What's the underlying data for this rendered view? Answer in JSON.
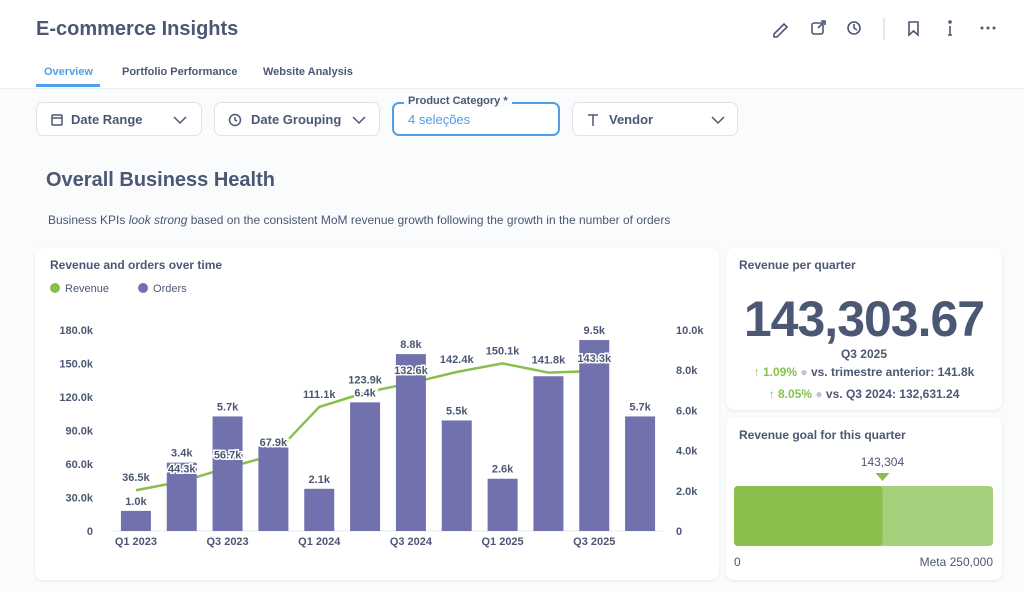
{
  "header": {
    "title": "E-commerce Insights"
  },
  "tabs": [
    "Overview",
    "Portfolio Performance",
    "Website Analysis"
  ],
  "filters": {
    "date_range": "Date Range",
    "date_grouping": "Date Grouping",
    "product_category": {
      "label": "Product Category *",
      "value": "4 seleções"
    },
    "vendor": "Vendor"
  },
  "section": {
    "title": "Overall Business Health",
    "description": [
      "Business KPIs ",
      "look strong",
      " based on the consistent MoM revenue growth following the growth in the number of orders"
    ]
  },
  "combo": {
    "type": "bar-line",
    "title": "Revenue and orders over time",
    "categories": [
      "Q1 2023",
      null,
      "Q3 2023",
      null,
      "Q1 2024",
      null,
      "Q3 2024",
      null,
      "Q1 2025",
      null,
      "Q3 2025",
      null
    ],
    "series": [
      {
        "name": "Revenue",
        "type": "line",
        "color": "#88bf4d",
        "axis": "y",
        "values": [
          36500,
          44300,
          56700,
          67900,
          111100,
          123900,
          132600,
          142400,
          150100,
          141800,
          143300,
          null
        ],
        "value_labels": [
          "36.5k",
          "44.3k",
          "56.7k",
          "67.9k",
          "111.1k",
          "123.9k",
          "132.6k",
          "142.4k",
          "150.1k",
          "141.8k",
          "143.3k",
          null
        ]
      },
      {
        "name": "Orders",
        "type": "bar",
        "color": "#7172ad",
        "axis": "y2",
        "values": [
          1000,
          3400,
          5700,
          4200,
          2100,
          6400,
          8800,
          5500,
          2600,
          7700,
          9500,
          5700
        ],
        "value_labels": [
          "1.0k",
          "3.4k",
          "5.7k",
          null,
          "2.1k",
          "6.4k",
          "8.8k",
          "5.5k",
          "2.6k",
          null,
          "9.5k",
          "5.7k"
        ]
      }
    ],
    "ylim": [
      0,
      180000
    ],
    "yticks": [
      0,
      {
        "value": 30000,
        "label": "30.0k"
      },
      {
        "value": 60000,
        "label": "60.0k"
      },
      {
        "value": 90000,
        "label": "90.0k"
      },
      {
        "value": 120000,
        "label": "120.0k"
      },
      {
        "value": 150000,
        "label": "150.0k"
      },
      {
        "value": 180000,
        "label": "180.0k"
      }
    ],
    "y2lim": [
      0,
      10000
    ],
    "y2ticks": [
      0,
      {
        "value": 2000,
        "label": "2.0k"
      },
      {
        "value": 4000,
        "label": "4.0k"
      },
      {
        "value": 6000,
        "label": "6.0k"
      },
      {
        "value": 8000,
        "label": "8.0k"
      },
      {
        "value": 10000,
        "label": "10.0k"
      }
    ],
    "grid": false
  },
  "kpi": {
    "title": "Revenue per quarter",
    "value": "143,303.67",
    "period": "Q3 2025",
    "comparisons": [
      {
        "change": "1.09%",
        "text": "vs. trimestre anterior: 141.8k"
      },
      {
        "change": "8.05%",
        "text": "vs. Q3 2024: 132,631.24"
      }
    ]
  },
  "goal": {
    "title": "Revenue goal for this quarter",
    "value": 143304,
    "value_label": "143,304",
    "min": 0,
    "max": 250000,
    "max_label": "Meta 250,000"
  }
}
